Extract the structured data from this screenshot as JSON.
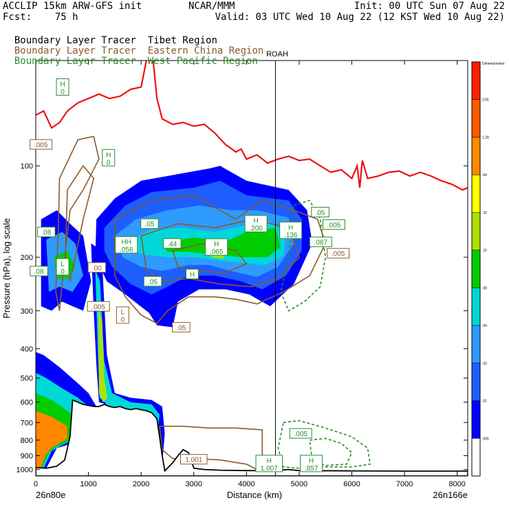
{
  "header": {
    "model": "ACCLIP 15km ARW-GFS init",
    "forecast": "Fcst:    75 h",
    "org": "NCAR/MMM",
    "init": "Init: 00 UTC Sun 07 Aug 22",
    "valid": "Valid: 03 UTC Wed 10 Aug 22 (12 KST Wed 10 Aug 22)",
    "series_lines": [
      {
        "a": "Boundary Layer Tracer",
        "b": "Tibet Region",
        "color": "#000000"
      },
      {
        "a": "Boundary Layer Tracer",
        "b": "Eastern China Region",
        "color": "#8a5a2b"
      },
      {
        "a": "Boundary Layer Tracer",
        "b": "West Pacific Region",
        "color": "#2a8a2a"
      }
    ]
  },
  "chart_data": {
    "type": "heatmap",
    "description_label": "ROAH",
    "xlabel": "Distance (km)",
    "ylabel": "Pressure (hPa), log scale",
    "xlim": [
      0,
      8200
    ],
    "ylim": [
      1050,
      45
    ],
    "x_ticks": [
      0,
      1000,
      2000,
      3000,
      4000,
      5000,
      6000,
      7000,
      8000
    ],
    "y_ticks": [
      100,
      200,
      300,
      400,
      500,
      600,
      700,
      800,
      900,
      1000
    ],
    "x_left_label": "26n80e",
    "x_right_label": "26n166e",
    "marker_x_km": 4550,
    "colorbar": {
      "title": "Dimensionless",
      "labels": [
        ".005",
        ".01",
        ".02",
        ".04",
        ".08",
        ".16",
        ".32",
        ".64",
        "1.28",
        "2.56"
      ],
      "colors": [
        "#ffffff",
        "#0000ff",
        "#1e5eff",
        "#2e9bff",
        "#00d8d8",
        "#00cc00",
        "#b0e000",
        "#ffff00",
        "#ff8800",
        "#ff5a00",
        "#ff2000"
      ]
    },
    "contour_labels": [
      {
        "text": "H",
        "sub": "0",
        "x_km": 510,
        "p": 55,
        "color": "#2a8a2a"
      },
      {
        "text": ".005",
        "sub": "",
        "x_km": 100,
        "p": 85,
        "color": "#8a5a2b"
      },
      {
        "text": "H",
        "sub": "0",
        "x_km": 1380,
        "p": 94,
        "color": "#2a8a2a"
      },
      {
        "text": ".08",
        "sub": "",
        "x_km": 200,
        "p": 165,
        "color": "#2a8a2a"
      },
      {
        "text": ".05",
        "sub": "",
        "x_km": 2160,
        "p": 155,
        "color": "#2a8a2a"
      },
      {
        "text": "H",
        "sub": ".200",
        "x_km": 4180,
        "p": 155,
        "color": "#2a8a2a"
      },
      {
        "text": "H",
        "sub": ".136",
        "x_km": 4840,
        "p": 163,
        "color": "#2a8a2a"
      },
      {
        "text": ".05",
        "sub": "",
        "x_km": 5400,
        "p": 142,
        "color": "#2a8a2a"
      },
      {
        "text": ".005",
        "sub": "",
        "x_km": 5660,
        "p": 156,
        "color": "#2a8a2a"
      },
      {
        "text": "HH",
        "sub": ".056",
        "x_km": 1720,
        "p": 182,
        "color": "#2a8a2a"
      },
      {
        "text": ".44",
        "sub": "",
        "x_km": 2590,
        "p": 180,
        "color": "#2a8a2a"
      },
      {
        "text": "H",
        "sub": ".065",
        "x_km": 3430,
        "p": 185,
        "color": "#2a8a2a"
      },
      {
        "text": ".087",
        "sub": "",
        "x_km": 5410,
        "p": 178,
        "color": "#2a8a2a"
      },
      {
        "text": ".005",
        "sub": "",
        "x_km": 5740,
        "p": 194,
        "color": "#8a5a2b"
      },
      {
        "text": "L",
        "sub": "0",
        "x_km": 510,
        "p": 215,
        "color": "#2a8a2a"
      },
      {
        "text": ".08",
        "sub": "",
        "x_km": 60,
        "p": 222,
        "color": "#2a8a2a"
      },
      {
        "text": ".00",
        "sub": "",
        "x_km": 1160,
        "p": 216,
        "color": "#8a5a2b"
      },
      {
        "text": "H",
        "sub": "",
        "x_km": 2970,
        "p": 227,
        "color": "#2a8a2a"
      },
      {
        "text": ".05",
        "sub": "",
        "x_km": 2220,
        "p": 240,
        "color": "#2a8a2a"
      },
      {
        "text": ".005",
        "sub": "",
        "x_km": 1190,
        "p": 290,
        "color": "#8a5a2b"
      },
      {
        "text": "L",
        "sub": "0",
        "x_km": 1650,
        "p": 310,
        "color": "#8a5a2b"
      },
      {
        "text": ".05",
        "sub": "",
        "x_km": 2760,
        "p": 340,
        "color": "#8a5a2b"
      },
      {
        "text": ".005",
        "sub": "",
        "x_km": 5030,
        "p": 760,
        "color": "#2a8a2a"
      },
      {
        "text": "1.001",
        "sub": "",
        "x_km": 3000,
        "p": 925,
        "color": "#8a5a2b"
      },
      {
        "text": "H",
        "sub": "1.007",
        "x_km": 4430,
        "p": 955,
        "color": "#2a8a2a"
      },
      {
        "text": "H",
        "sub": ".857",
        "x_km": 5230,
        "p": 955,
        "color": "#2a8a2a"
      }
    ]
  }
}
